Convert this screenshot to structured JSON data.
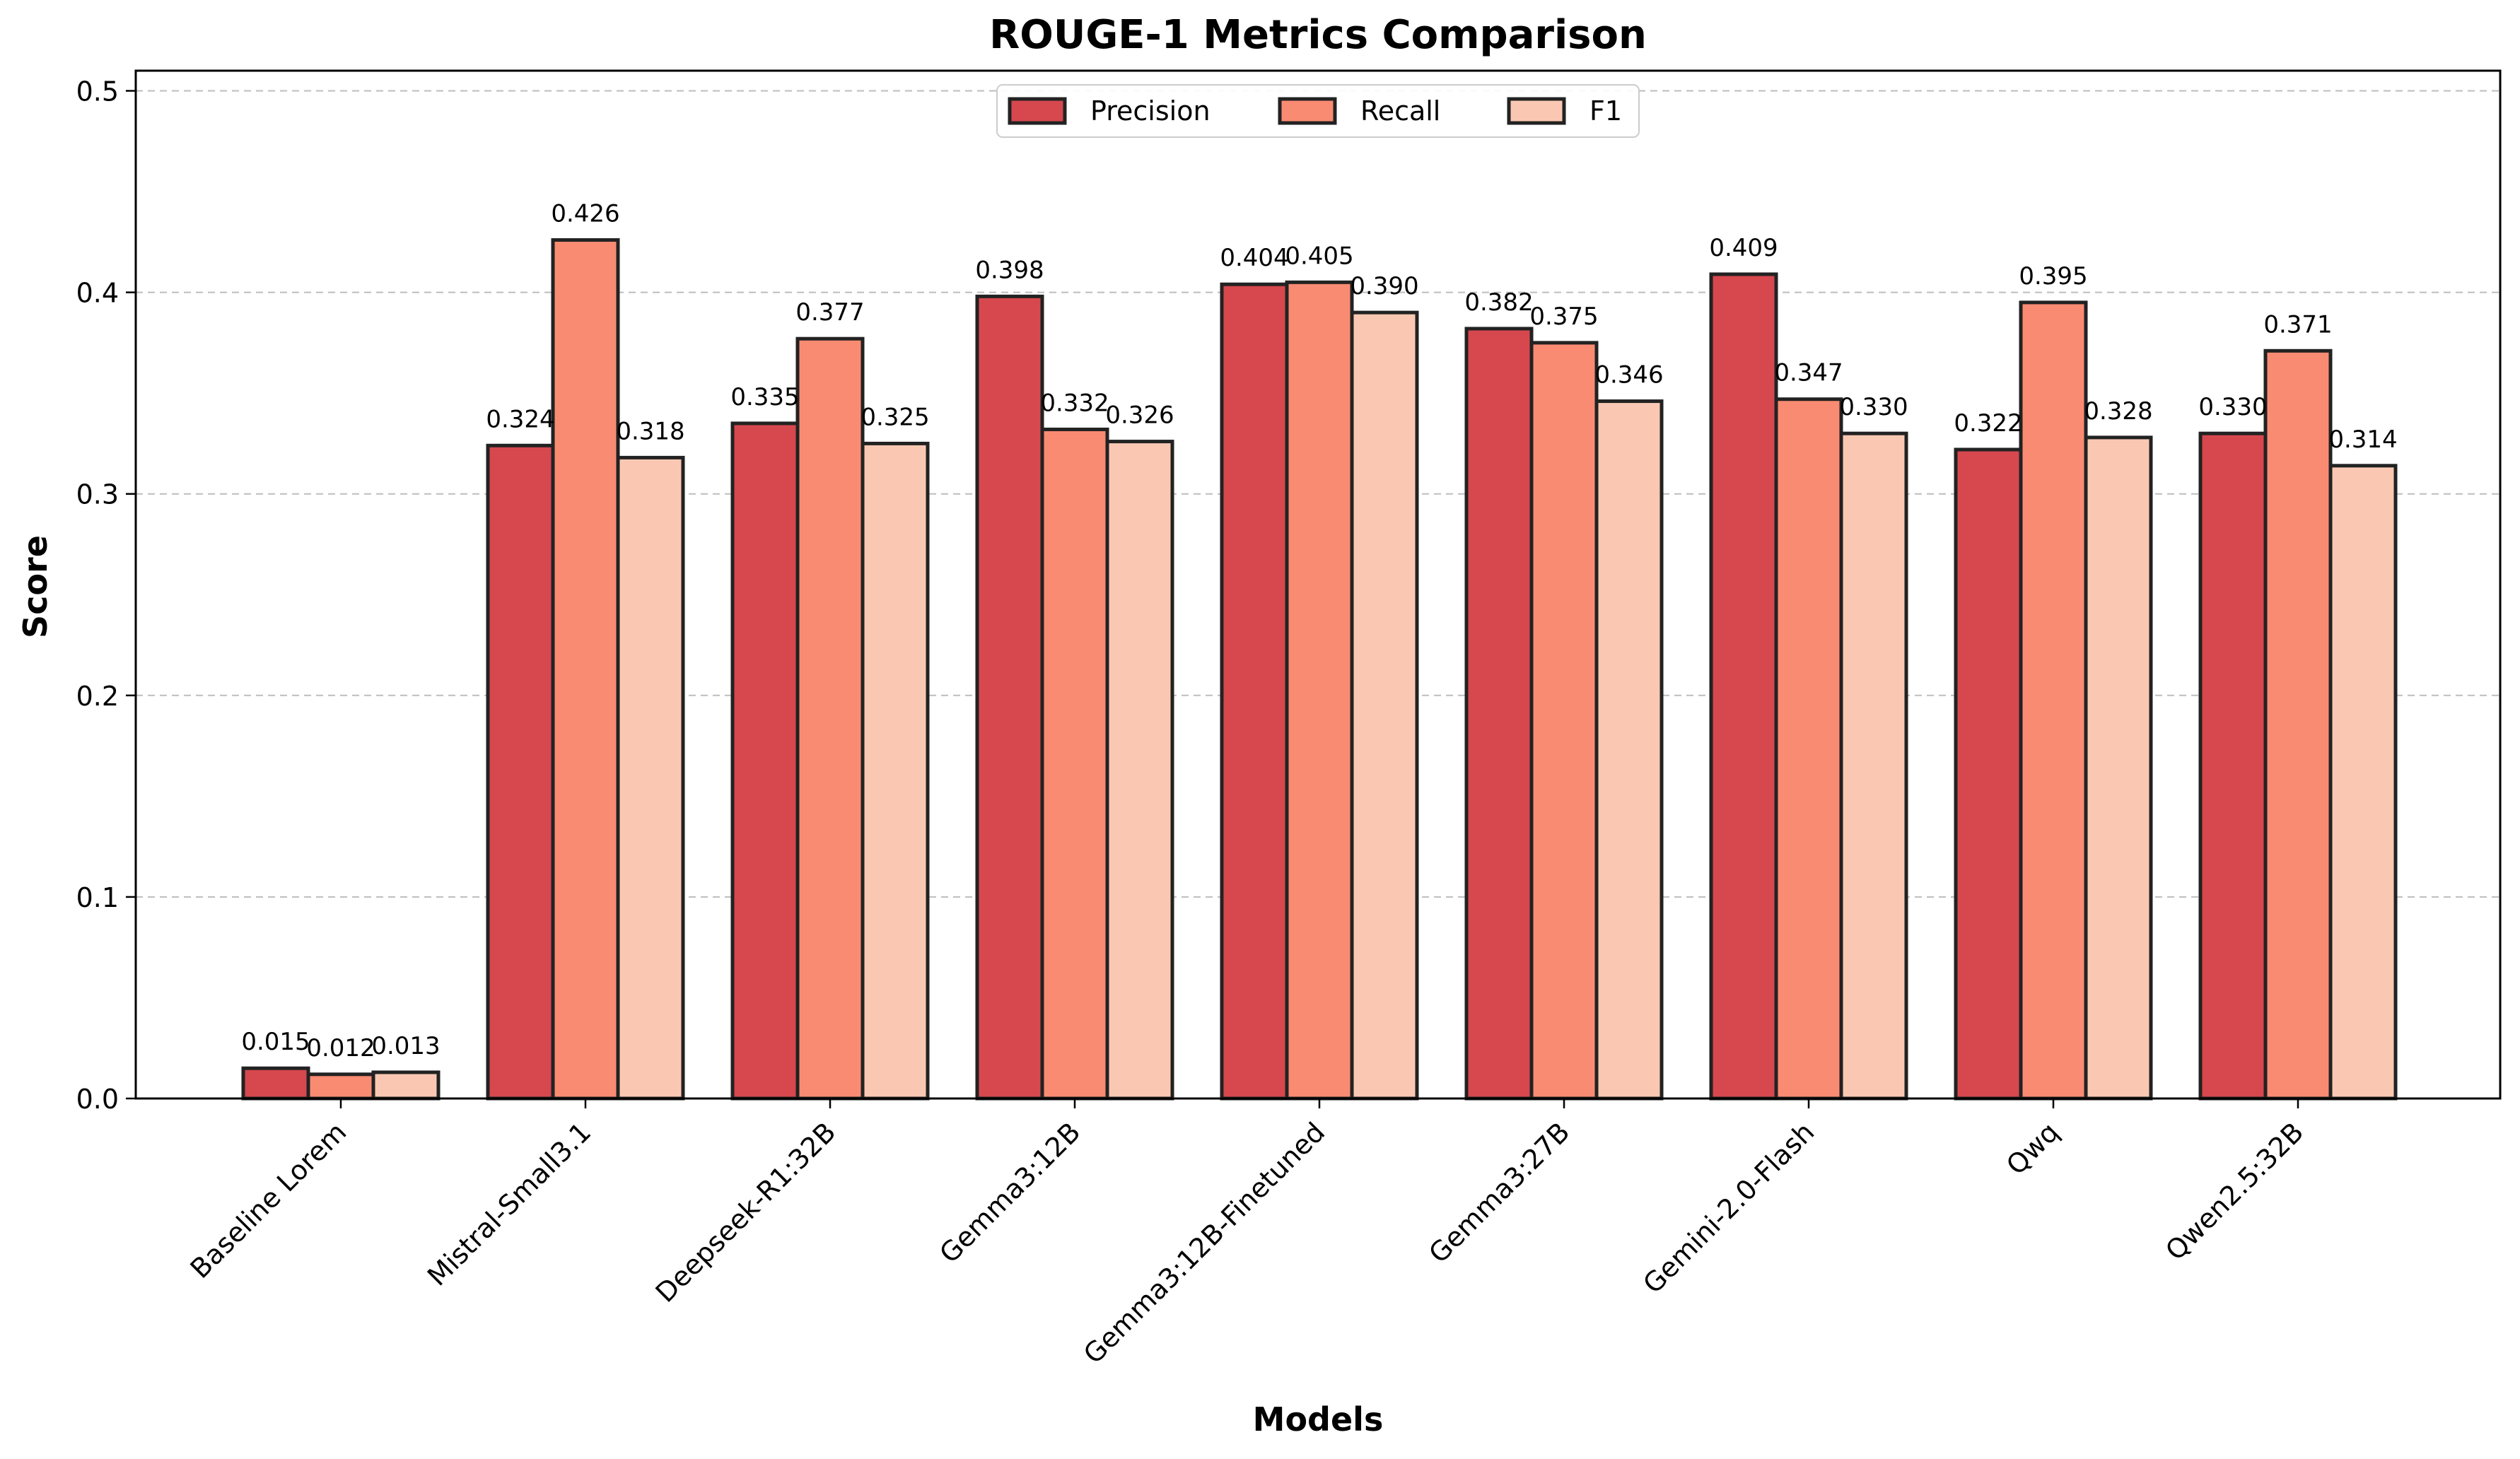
{
  "chart_data": {
    "type": "bar",
    "title": "ROUGE-1 Metrics Comparison",
    "xlabel": "Models",
    "ylabel": "Score",
    "ylim": [
      0,
      0.51
    ],
    "yticks": [
      0.0,
      0.1,
      0.2,
      0.3,
      0.4,
      0.5
    ],
    "ytick_labels": [
      "0.0",
      "0.1",
      "0.2",
      "0.3",
      "0.4",
      "0.5"
    ],
    "grid": "horizontal dashed",
    "legend_position": "top-center",
    "categories": [
      "Baseline Lorem",
      "Mistral-Small3.1",
      "Deepseek-R1:32B",
      "Gemma3:12B",
      "Gemma3:12B-Finetuned",
      "Gemma3:27B",
      "Gemini-2.0-Flash",
      "Qwq",
      "Qwen2.5:32B"
    ],
    "series": [
      {
        "name": "Precision",
        "color": "#d6484e",
        "values": [
          0.015,
          0.324,
          0.335,
          0.398,
          0.404,
          0.382,
          0.409,
          0.322,
          0.33
        ],
        "labels": [
          "0.015",
          "0.324",
          "0.335",
          "0.398",
          "0.404",
          "0.382",
          "0.409",
          "0.322",
          "0.330"
        ]
      },
      {
        "name": "Recall",
        "color": "#f98b72",
        "values": [
          0.012,
          0.426,
          0.377,
          0.332,
          0.405,
          0.375,
          0.347,
          0.395,
          0.371
        ],
        "labels": [
          "0.012",
          "0.426",
          "0.377",
          "0.332",
          "0.405",
          "0.375",
          "0.347",
          "0.395",
          "0.371"
        ]
      },
      {
        "name": "F1",
        "color": "#fac8b2",
        "values": [
          0.013,
          0.318,
          0.325,
          0.326,
          0.39,
          0.346,
          0.33,
          0.328,
          0.314
        ],
        "labels": [
          "0.013",
          "0.318",
          "0.325",
          "0.326",
          "0.390",
          "0.346",
          "0.330",
          "0.328",
          "0.314"
        ]
      }
    ],
    "edge_color": "#222222"
  }
}
